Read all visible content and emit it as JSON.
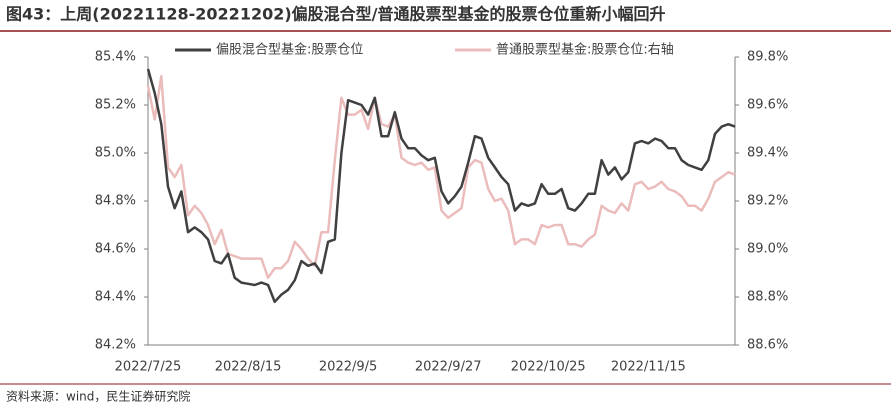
{
  "chart_data": {
    "type": "line",
    "title": "图43：上周(20221128-20221202)偏股混合型/普通股票型基金的股票仓位重新小幅回升",
    "source": "资料来源：wind，民生证券研究院",
    "categories": [
      "2022/7/25",
      null,
      null,
      null,
      null,
      null,
      null,
      null,
      null,
      null,
      null,
      null,
      null,
      null,
      null,
      "2022/8/15",
      null,
      null,
      null,
      null,
      null,
      null,
      null,
      null,
      null,
      null,
      null,
      null,
      null,
      null,
      "2022/9/5",
      null,
      null,
      null,
      null,
      null,
      null,
      null,
      null,
      null,
      null,
      null,
      null,
      null,
      null,
      "2022/9/27",
      null,
      null,
      null,
      null,
      null,
      null,
      null,
      null,
      null,
      null,
      null,
      null,
      null,
      null,
      "2022/10/25",
      null,
      null,
      null,
      null,
      null,
      null,
      null,
      null,
      null,
      null,
      null,
      null,
      null,
      null,
      "2022/11/15",
      null,
      null,
      null,
      null,
      null,
      null,
      null,
      null,
      null,
      null,
      null,
      null,
      null
    ],
    "series": [
      {
        "name": "偏股混合型基金:股票仓位",
        "color": "#404040",
        "values": [
          85.35,
          85.25,
          85.12,
          84.86,
          84.77,
          84.84,
          84.67,
          84.69,
          84.67,
          84.64,
          84.55,
          84.54,
          84.58,
          84.48,
          84.46,
          84.455,
          84.45,
          84.46,
          84.45,
          84.38,
          84.41,
          84.43,
          84.47,
          84.55,
          84.53,
          84.54,
          84.5,
          84.63,
          84.64,
          85.0,
          85.22,
          85.21,
          85.2,
          85.16,
          85.23,
          85.07,
          85.07,
          85.17,
          85.06,
          85.02,
          85.02,
          84.99,
          84.97,
          84.98,
          84.84,
          84.79,
          84.82,
          84.86,
          84.96,
          85.07,
          85.06,
          84.98,
          84.94,
          84.9,
          84.87,
          84.76,
          84.79,
          84.78,
          84.79,
          84.87,
          84.83,
          84.83,
          84.85,
          84.77,
          84.76,
          84.79,
          84.83,
          84.83,
          84.97,
          84.91,
          84.94,
          84.89,
          84.92,
          85.04,
          85.05,
          85.04,
          85.06,
          85.05,
          85.02,
          85.02,
          84.97,
          84.95,
          84.94,
          84.93,
          84.97,
          85.08,
          85.11,
          85.12,
          85.11
        ]
      },
      {
        "name": "普通股票型基金:股票仓位:右轴",
        "color": "#ebbcbc",
        "axis": "y2",
        "values": [
          89.68,
          89.54,
          89.72,
          89.34,
          89.3,
          89.35,
          89.14,
          89.18,
          89.15,
          89.1,
          89.02,
          89.08,
          88.98,
          88.97,
          88.96,
          88.96,
          88.96,
          88.96,
          88.88,
          88.92,
          88.92,
          88.95,
          89.03,
          89.0,
          88.96,
          88.93,
          89.07,
          89.07,
          89.37,
          89.63,
          89.56,
          89.56,
          89.58,
          89.5,
          89.63,
          89.52,
          89.51,
          89.56,
          89.38,
          89.36,
          89.35,
          89.36,
          89.33,
          89.34,
          89.16,
          89.13,
          89.15,
          89.17,
          89.34,
          89.37,
          89.36,
          89.25,
          89.2,
          89.21,
          89.16,
          89.02,
          89.04,
          89.04,
          89.02,
          89.1,
          89.09,
          89.1,
          89.1,
          89.02,
          89.02,
          89.01,
          89.04,
          89.06,
          89.18,
          89.16,
          89.15,
          89.19,
          89.16,
          89.27,
          89.28,
          89.25,
          89.26,
          89.28,
          89.25,
          89.24,
          89.22,
          89.18,
          89.18,
          89.16,
          89.21,
          89.28,
          89.3,
          89.32,
          89.31
        ]
      }
    ],
    "ylim": [
      84.2,
      85.4
    ],
    "yticks": [
      {
        "value": 84.2,
        "label": "84.2%"
      },
      {
        "value": 84.4,
        "label": "84.4%"
      },
      {
        "value": 84.6,
        "label": "84.6%"
      },
      {
        "value": 84.8,
        "label": "84.8%"
      },
      {
        "value": 85.0,
        "label": "85.0%"
      },
      {
        "value": 85.2,
        "label": "85.2%"
      },
      {
        "value": 85.4,
        "label": "85.4%"
      }
    ],
    "y2lim": [
      88.6,
      89.8
    ],
    "y2ticks": [
      {
        "value": 88.6,
        "label": "88.6%"
      },
      {
        "value": 88.8,
        "label": "88.8%"
      },
      {
        "value": 89.0,
        "label": "89.0%"
      },
      {
        "value": 89.2,
        "label": "89.2%"
      },
      {
        "value": 89.4,
        "label": "89.4%"
      },
      {
        "value": 89.6,
        "label": "89.6%"
      },
      {
        "value": 89.8,
        "label": "89.8%"
      }
    ],
    "grid": false,
    "legend": "top"
  }
}
